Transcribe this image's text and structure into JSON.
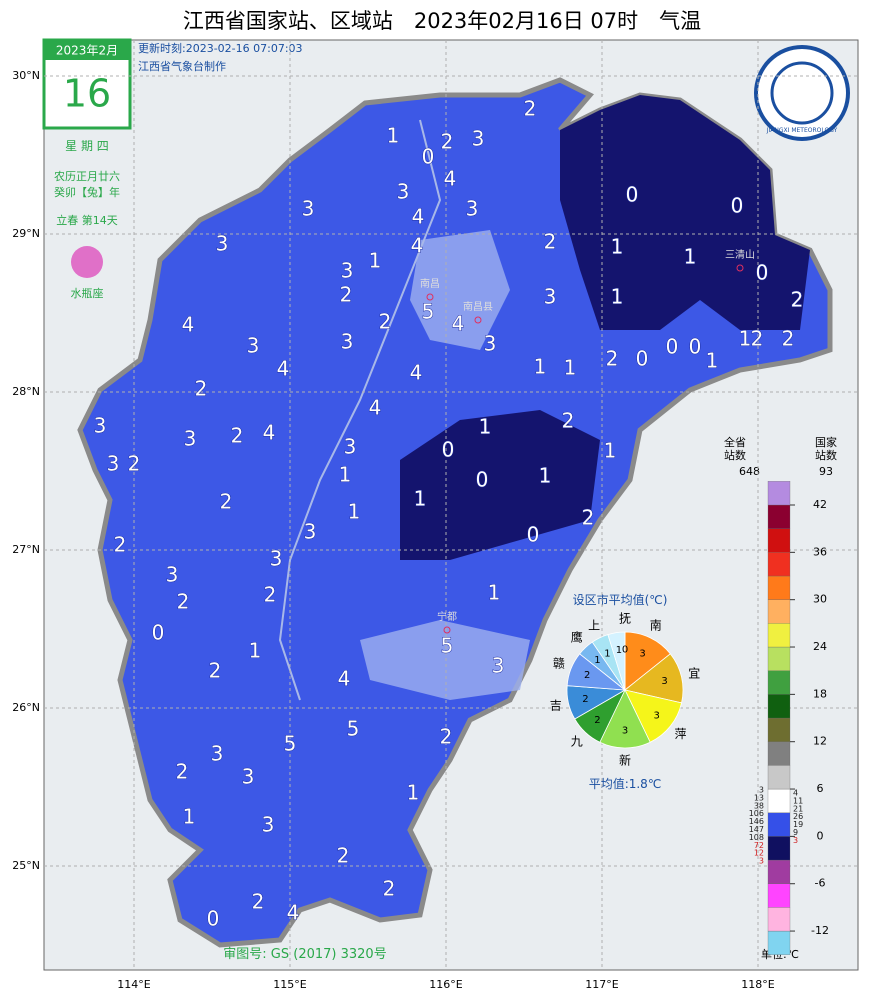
{
  "header": {
    "title": "江西省国家站、区域站　2023年02月16日 07时　气温",
    "update_time": "更新时刻:2023-02-16 07:07:03",
    "producer": "江西省气象台制作",
    "logo_text": "JIANGXI METEOROLOGY"
  },
  "calendar": {
    "year_month": "2023年2月",
    "day": "16",
    "weekday": "星 期 四",
    "lunar": "农历正月廿六",
    "lunar_year": "癸卯【兔】年",
    "solar_term": "立春 第14天",
    "zodiac": "水瓶座"
  },
  "axes": {
    "lat_ticks": [
      {
        "value": 30,
        "label": "30°N"
      },
      {
        "value": 29,
        "label": "29°N"
      },
      {
        "value": 28,
        "label": "28°N"
      },
      {
        "value": 27,
        "label": "27°N"
      },
      {
        "value": 26,
        "label": "26°N"
      },
      {
        "value": 25,
        "label": "25°N"
      }
    ],
    "lon_ticks": [
      {
        "value": 114,
        "label": "114°E"
      },
      {
        "value": 115,
        "label": "115°E"
      },
      {
        "value": 116,
        "label": "116°E"
      },
      {
        "value": 117,
        "label": "117°E"
      },
      {
        "value": 118,
        "label": "118°E"
      }
    ]
  },
  "places": [
    "南昌",
    "南昌县",
    "三清山",
    "宁都"
  ],
  "stations": [
    2,
    1,
    2,
    3,
    0,
    4,
    3,
    3,
    4,
    3,
    3,
    4,
    1,
    3,
    2,
    2,
    5,
    4,
    3,
    2,
    3,
    1,
    1,
    0,
    1,
    0,
    0,
    2,
    1,
    2,
    2,
    2,
    0,
    0,
    0,
    1,
    1,
    1,
    2,
    1,
    4,
    3,
    4,
    3,
    4,
    2,
    4,
    1,
    3,
    3,
    2,
    3,
    2,
    4,
    3,
    0,
    0,
    1,
    1,
    1,
    1,
    3,
    2,
    2,
    0,
    2,
    3,
    2,
    3,
    2,
    0,
    1,
    5,
    3,
    1,
    4,
    2,
    5,
    5,
    2,
    3,
    2,
    3,
    1,
    1,
    3,
    2,
    2,
    2,
    4,
    0
  ],
  "pie": {
    "type": "pie",
    "title": "设区市平均值(℃)",
    "average": "平均值:1.8℃",
    "categories": [
      "南",
      "宜",
      "萍",
      "新",
      "九",
      "吉",
      "赣",
      "鹰",
      "上",
      null,
      "抚"
    ],
    "values": [
      3,
      3,
      3,
      3,
      2,
      2,
      2,
      1,
      1,
      1,
      0
    ],
    "colors": [
      "#ff8c1a",
      "#e6b820",
      "#f5f51a",
      "#90e050",
      "#2f9f2f",
      "#3a8cd8",
      "#6a98f0",
      "#78b8f0",
      "#a8e4f4",
      "#d4f2ff",
      "#808080"
    ]
  },
  "legend": {
    "province_header": "全省\n站数",
    "province_total": "648",
    "national_header": "国家\n站数",
    "national_total": "93",
    "unit": "单位:℃",
    "ylim": [
      -15,
      45
    ],
    "ticks": [
      42,
      36,
      30,
      24,
      18,
      12,
      6,
      0,
      -6,
      -12
    ],
    "edges": [
      -15,
      -12,
      -9,
      -6,
      -3,
      0,
      3,
      6,
      9,
      12,
      15,
      18,
      21,
      24,
      27,
      30,
      33,
      36,
      39,
      42,
      45
    ],
    "colors": [
      "#80d4f0",
      "#ffb4e0",
      "#ff44ff",
      "#a03ca0",
      "#101060",
      "#3550e8",
      "#ffffff",
      "#c8c8c8",
      "#808080",
      "#6e6e30",
      "#106010",
      "#40a040",
      "#b8e060",
      "#f0f040",
      "#ffb060",
      "#ff7a1a",
      "#f03020",
      "#d01010",
      "#8b0030",
      "#b48be0"
    ],
    "province_counts": [
      "3",
      "13",
      "38",
      "106",
      "146",
      "147",
      "108",
      "72",
      "12",
      "3"
    ],
    "national_counts": [
      "4",
      "11",
      "21",
      "26",
      "19",
      "9",
      "3"
    ]
  },
  "footer": {
    "review_no": "审图号: GS (2017) 3320号"
  }
}
